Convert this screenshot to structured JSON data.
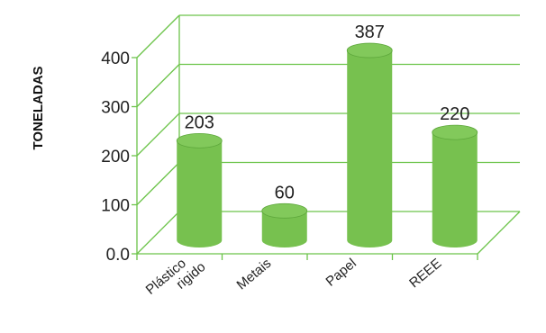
{
  "chart_data": {
    "type": "bar",
    "style": "3d-cylinder",
    "categories": [
      "Plástico rigido",
      "Metais",
      "Papel",
      "REEE"
    ],
    "category_lines": [
      [
        "Plástico",
        "rigido"
      ],
      [
        "Metais"
      ],
      [
        "Papel"
      ],
      [
        "REEE"
      ]
    ],
    "values": [
      203,
      60,
      387,
      220
    ],
    "data_labels": [
      "203",
      "60",
      "387",
      "220"
    ],
    "title": "",
    "xlabel": "",
    "ylabel": "TONELADAS",
    "ylim": [
      0,
      400
    ],
    "y_ticks": [
      0,
      100,
      200,
      300,
      400
    ],
    "y_tick_labels": [
      "0.0",
      "100",
      "200",
      "300",
      "400"
    ],
    "grid": true,
    "legend": "none",
    "colors": {
      "bar": "#77c14f",
      "bar_dark": "#5ea83c",
      "bar_top": "#82c95b",
      "grid": "#6cc44a"
    }
  }
}
